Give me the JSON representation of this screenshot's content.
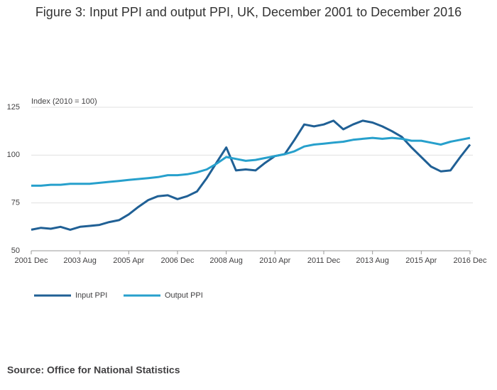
{
  "chart_data": {
    "type": "line",
    "title": "Figure 3: Input PPI and output PPI, UK, December 2001 to December 2016",
    "y_label": "Index (2010 = 100)",
    "source": "Source: Office for National Statistics",
    "categories": [
      "2001 Dec",
      null,
      null,
      null,
      null,
      "2003 Aug",
      null,
      null,
      null,
      null,
      "2005 Apr",
      null,
      null,
      null,
      null,
      "2006 Dec",
      null,
      null,
      null,
      null,
      "2008 Aug",
      null,
      null,
      null,
      null,
      "2010 Apr",
      null,
      null,
      null,
      null,
      "2011 Dec",
      null,
      null,
      null,
      null,
      "2013 Aug",
      null,
      null,
      null,
      null,
      "2015 Apr",
      null,
      null,
      null,
      null,
      "2016 Dec"
    ],
    "series": [
      {
        "name": "Input PPI",
        "color": "#206095",
        "values": [
          61,
          62,
          61.5,
          62.5,
          61,
          62.5,
          63,
          63.5,
          65,
          66,
          69,
          73,
          76.5,
          78.5,
          79,
          77,
          78.5,
          81,
          88,
          96,
          104,
          92,
          92.5,
          92,
          96,
          99.5,
          100.5,
          108,
          116,
          115,
          116,
          118,
          113.5,
          116,
          118,
          117,
          115,
          112.5,
          109.5,
          104,
          99,
          94,
          91.5,
          92,
          99,
          105.5
        ]
      },
      {
        "name": "Output PPI",
        "color": "#27a0cc",
        "values": [
          84,
          84,
          84.5,
          84.5,
          85,
          85,
          85,
          85.5,
          86,
          86.5,
          87,
          87.5,
          88,
          88.5,
          89.5,
          89.5,
          90,
          91,
          92.5,
          95.5,
          99,
          98,
          97,
          97.5,
          98.5,
          99.5,
          100.5,
          102,
          104.5,
          105.5,
          106,
          106.5,
          107,
          108,
          108.5,
          109,
          108.5,
          109,
          108.5,
          107.5,
          107.5,
          106.5,
          105.5,
          107,
          108,
          109
        ]
      }
    ],
    "ylim": [
      50,
      125
    ],
    "yticks": [
      50,
      75,
      100,
      125
    ],
    "grid": true,
    "legend": "bottom"
  }
}
